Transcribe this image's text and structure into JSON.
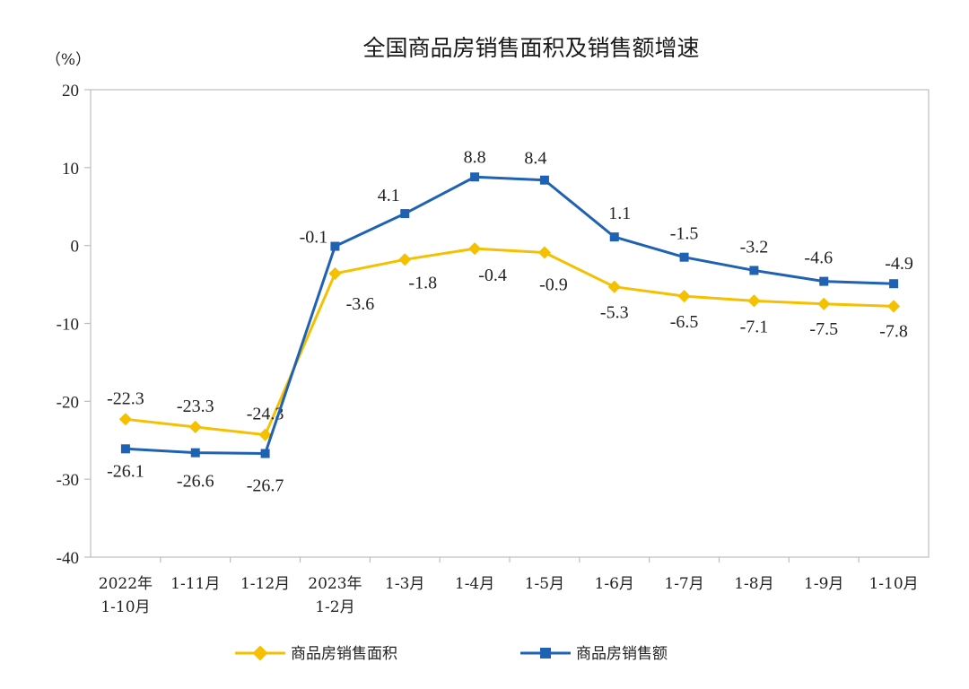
{
  "chart_data": {
    "type": "line",
    "title": "全国商品房销售面积及销售额增速",
    "unit_label": "（%）",
    "categories": [
      [
        "2022年",
        "1-10月"
      ],
      [
        "1-11月"
      ],
      [
        "1-12月"
      ],
      [
        "2023年",
        "1-2月"
      ],
      [
        "1-3月"
      ],
      [
        "1-4月"
      ],
      [
        "1-5月"
      ],
      [
        "1-6月"
      ],
      [
        "1-7月"
      ],
      [
        "1-8月"
      ],
      [
        "1-9月"
      ],
      [
        "1-10月"
      ]
    ],
    "ylim": [
      -40,
      20
    ],
    "yticks": [
      "20",
      "10",
      "0",
      "-10",
      "-20",
      "-30",
      "-40"
    ],
    "ytick_values": [
      20,
      10,
      0,
      -10,
      -20,
      -30,
      -40
    ],
    "grid": false,
    "legend_position": "bottom",
    "series": [
      {
        "name": "商品房销售面积",
        "color": "#f5c000",
        "marker": "diamond",
        "values": [
          -22.3,
          -23.3,
          -24.3,
          -3.6,
          -1.8,
          -0.4,
          -0.9,
          -5.3,
          -6.5,
          -7.1,
          -7.5,
          -7.8
        ],
        "labels": [
          "-22.3",
          "-23.3",
          "-24.3",
          "-3.6",
          "-1.8",
          "-0.4",
          "-0.9",
          "-5.3",
          "-6.5",
          "-7.1",
          "-7.5",
          "-7.8"
        ]
      },
      {
        "name": "商品房销售额",
        "color": "#1f62b3",
        "marker": "square",
        "values": [
          -26.1,
          -26.6,
          -26.7,
          -0.1,
          4.1,
          8.8,
          8.4,
          1.1,
          -1.5,
          -3.2,
          -4.6,
          -4.9
        ],
        "labels": [
          "-26.1",
          "-26.6",
          "-26.7",
          "-0.1",
          "4.1",
          "8.8",
          "8.4",
          "1.1",
          "-1.5",
          "-3.2",
          "-4.6",
          "-4.9"
        ]
      }
    ]
  }
}
